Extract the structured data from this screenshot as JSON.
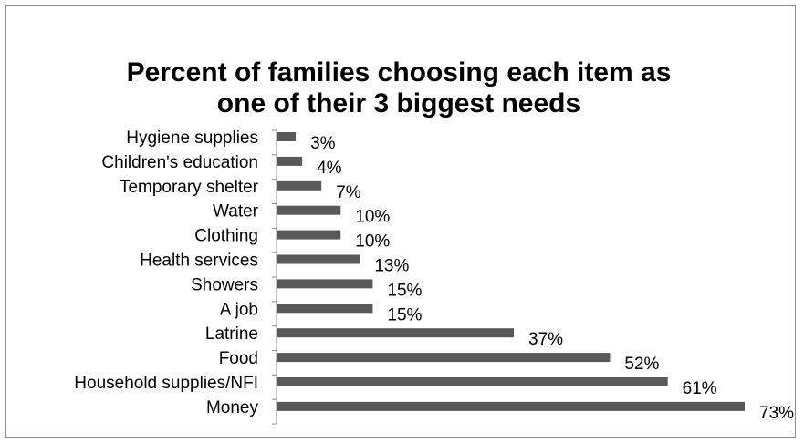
{
  "chart_data": {
    "type": "bar",
    "orientation": "horizontal",
    "title_line1": "Percent of families choosing each item as",
    "title_line2": "one of their 3 biggest needs",
    "categories": [
      "Hygiene supplies",
      "Children's education",
      "Temporary shelter",
      "Water",
      "Clothing",
      "Health services",
      "Showers",
      "A job",
      "Latrine",
      "Food",
      "Household supplies/NFI",
      "Money"
    ],
    "values": [
      3,
      4,
      7,
      10,
      10,
      13,
      15,
      15,
      37,
      52,
      61,
      73
    ],
    "value_labels": [
      "3%",
      "4%",
      "7%",
      "10%",
      "10%",
      "13%",
      "15%",
      "15%",
      "37%",
      "52%",
      "61%",
      "73%"
    ],
    "xlim": [
      0,
      73
    ],
    "grid": false,
    "legend": "none",
    "bar_color": "#595959"
  }
}
